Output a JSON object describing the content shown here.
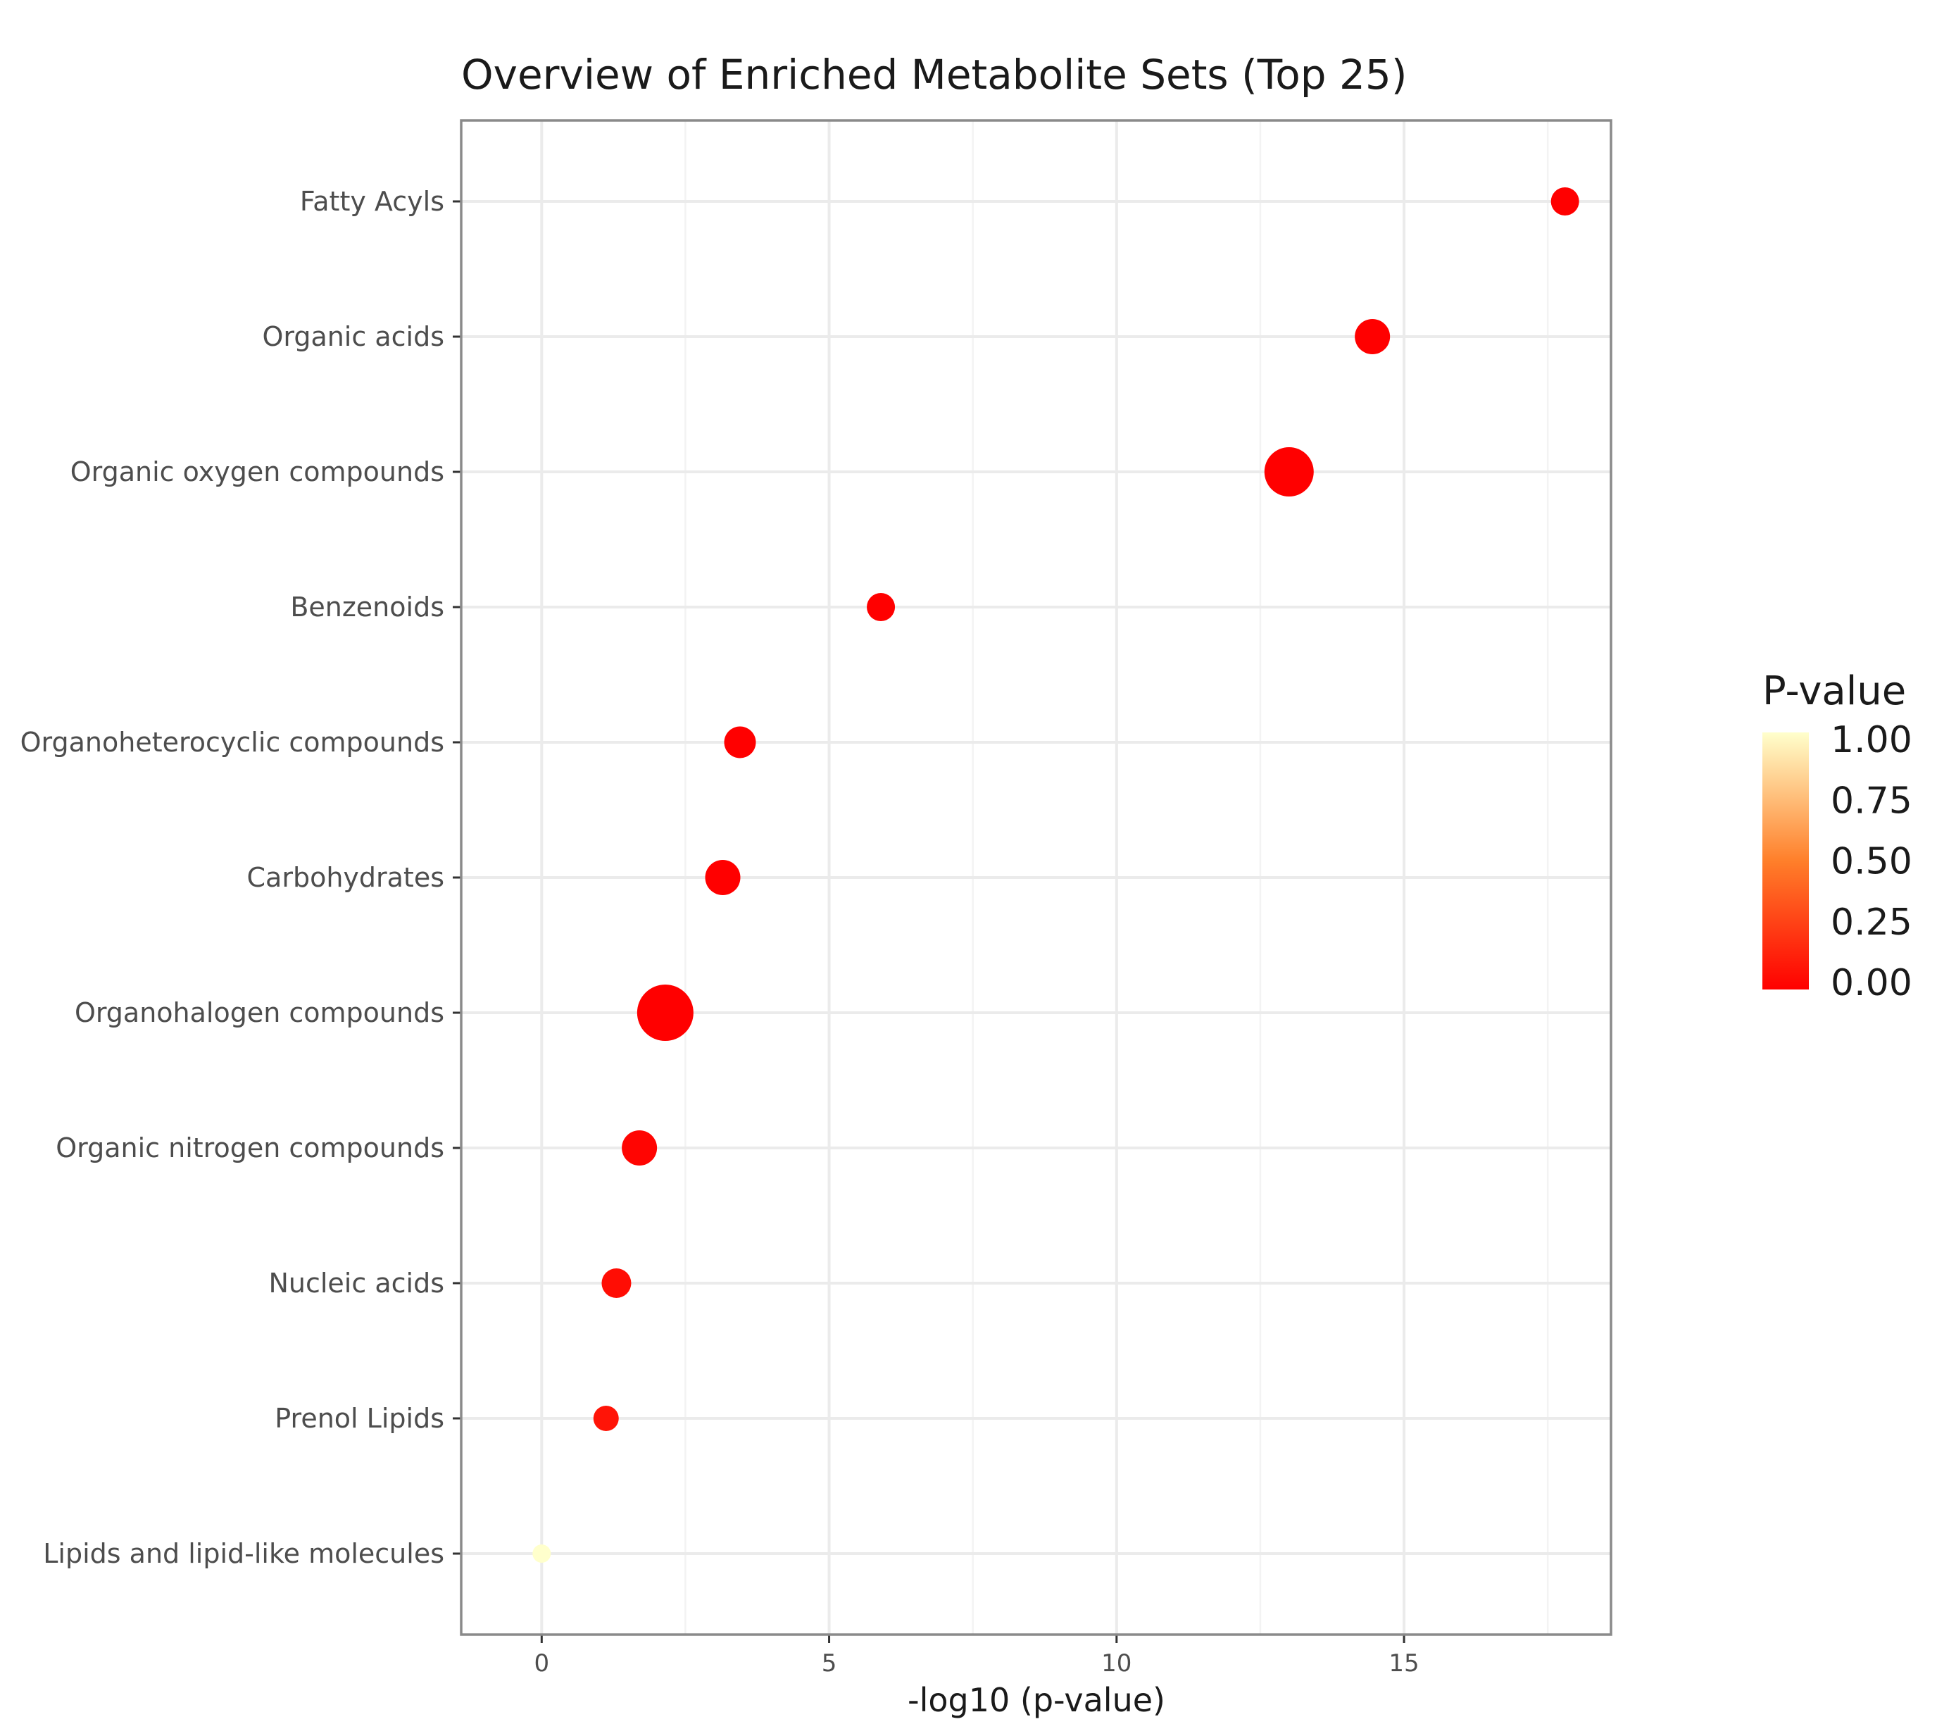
{
  "chart_data": {
    "type": "scatter",
    "title": "Overview of Enriched Metabolite Sets (Top 25)",
    "xlabel": "-log10 (p-value)",
    "ylabel": "",
    "xlim": [
      -1.4,
      18.6
    ],
    "xticks": [
      0,
      5,
      10,
      15
    ],
    "xtick_labels": [
      "0",
      "5",
      "10",
      "15"
    ],
    "grid": true,
    "categories": [
      "Fatty Acyls",
      "Organic acids",
      "Organic oxygen compounds",
      "Benzenoids",
      "Organoheterocyclic compounds",
      "Carbohydrates",
      "Organohalogen compounds",
      "Organic nitrogen compounds",
      "Nucleic acids",
      "Prenol Lipids",
      "Lipids and lipid-like molecules"
    ],
    "x": [
      17.8,
      14.45,
      13.0,
      5.9,
      3.45,
      3.15,
      2.15,
      1.7,
      1.3,
      1.12,
      0.0
    ],
    "p_value": [
      0.0,
      0.0,
      0.0,
      0.0,
      0.0,
      0.0,
      0.0,
      0.02,
      0.05,
      0.08,
      1.0
    ],
    "size": [
      2,
      3,
      5,
      2,
      2.5,
      3,
      6,
      3,
      2.2,
      1.6,
      0.6
    ],
    "legend": {
      "title": "P-value",
      "position": "right",
      "labels": [
        "1.00",
        "0.75",
        "0.50",
        "0.25",
        "0.00"
      ],
      "values": [
        1.0,
        0.75,
        0.5,
        0.25,
        0.0
      ],
      "color_low": "#ff0000",
      "color_mid": "#ff7f2a",
      "color_high": "#ffffcc"
    }
  }
}
